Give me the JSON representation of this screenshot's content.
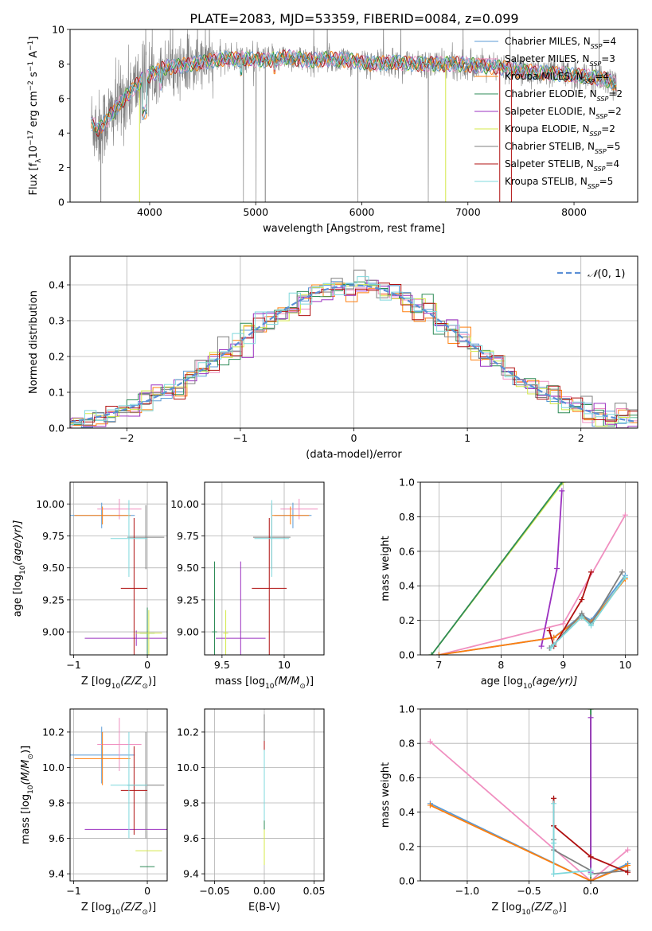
{
  "figure_title": "PLATE=2083, MJD=53359, FIBERID=0084, z=0.099",
  "colors": {
    "chabrier_miles": "#5b9bd5",
    "salpeter_miles": "#f08fc0",
    "kroupa_miles": "#ff7f0e",
    "chabrier_elodie": "#2e8b57",
    "salpeter_elodie": "#9b30c0",
    "kroupa_elodie": "#d4e84a",
    "chabrier_stelib": "#7f7f7f",
    "salpeter_stelib": "#b01010",
    "kroupa_stelib": "#7fd8dc",
    "normal": "#5b8fd6",
    "grid": "#b0b0b0"
  },
  "chart_data": [
    {
      "type": "line",
      "xlabel": "wavelength [Angstrom, rest frame]",
      "ylabel_parts": [
        "Flux [f",
        "λ",
        "10",
        "−17",
        " erg cm",
        "−2",
        " s",
        "−1",
        " A",
        "−1",
        "]"
      ],
      "xlim": [
        3250,
        8600
      ],
      "ylim": [
        0,
        10
      ],
      "xticks": [
        4000,
        5000,
        6000,
        7000,
        8000
      ],
      "yticks": [
        0,
        2,
        4,
        6,
        8,
        10
      ],
      "legend_position": "top-right",
      "series": [
        {
          "name": "Chabrier MILES, N_SSP=4",
          "legend": [
            "Chabrier MILES, N",
            "SSP",
            "=4"
          ],
          "color_key": "chabrier_miles"
        },
        {
          "name": "Salpeter MILES, N_SSP=3",
          "legend": [
            "Salpeter MILES, N",
            "SSP",
            "=3"
          ],
          "color_key": "salpeter_miles"
        },
        {
          "name": "Kroupa MILES, N_SSP=4",
          "legend": [
            "Kroupa MILES, N",
            "SSP",
            "=4"
          ],
          "color_key": "kroupa_miles"
        },
        {
          "name": "Chabrier ELODIE, N_SSP=2",
          "legend": [
            "Chabrier ELODIE, N",
            "SSP",
            "=2"
          ],
          "color_key": "chabrier_elodie"
        },
        {
          "name": "Salpeter ELODIE, N_SSP=2",
          "legend": [
            "Salpeter ELODIE, N",
            "SSP",
            "=2"
          ],
          "color_key": "salpeter_elodie"
        },
        {
          "name": "Kroupa ELODIE, N_SSP=2",
          "legend": [
            "Kroupa ELODIE, N",
            "SSP",
            "=2"
          ],
          "color_key": "kroupa_elodie"
        },
        {
          "name": "Chabrier STELIB, N_SSP=5",
          "legend": [
            "Chabrier STELIB, N",
            "SSP",
            "=5"
          ],
          "color_key": "chabrier_stelib"
        },
        {
          "name": "Salpeter STELIB, N_SSP=4",
          "legend": [
            "Salpeter STELIB, N",
            "SSP",
            "=4"
          ],
          "color_key": "salpeter_stelib"
        },
        {
          "name": "Kroupa STELIB, N_SSP=5",
          "legend": [
            "Kroupa STELIB, N",
            "SSP",
            "=5"
          ],
          "color_key": "kroupa_stelib"
        }
      ],
      "model_continuum": [
        [
          3450,
          4.6
        ],
        [
          3520,
          4.2
        ],
        [
          3600,
          4.8
        ],
        [
          3680,
          5.4
        ],
        [
          3760,
          6.0
        ],
        [
          3850,
          6.6
        ],
        [
          3950,
          7.2
        ],
        [
          4050,
          7.5
        ],
        [
          4150,
          7.8
        ],
        [
          4300,
          7.9
        ],
        [
          4500,
          8.1
        ],
        [
          4700,
          8.3
        ],
        [
          4900,
          8.3
        ],
        [
          5100,
          8.2
        ],
        [
          5300,
          8.4
        ],
        [
          5500,
          8.2
        ],
        [
          5700,
          8.3
        ],
        [
          5900,
          8.2
        ],
        [
          6100,
          8.0
        ],
        [
          6300,
          8.1
        ],
        [
          6500,
          8.0
        ],
        [
          6700,
          8.0
        ],
        [
          6900,
          8.0
        ],
        [
          7100,
          7.9
        ],
        [
          7300,
          7.8
        ],
        [
          7500,
          7.6
        ],
        [
          7700,
          7.5
        ],
        [
          7900,
          7.4
        ],
        [
          8100,
          7.3
        ],
        [
          8300,
          7.1
        ],
        [
          8400,
          6.8
        ]
      ]
    },
    {
      "type": "line",
      "xlabel": "(data-model)/error",
      "ylabel": "Normed distribution",
      "xlim": [
        -2.5,
        2.5
      ],
      "ylim": [
        0,
        0.48
      ],
      "xticks": [
        -2,
        -1,
        0,
        1,
        2
      ],
      "yticks": [
        0.0,
        0.1,
        0.2,
        0.3,
        0.4
      ],
      "grid": true,
      "legend_position": "top-right",
      "normal_label": "N(0, 1)",
      "normal_legend": [
        "𝒩",
        "(0, 1)"
      ]
    },
    {
      "type": "scatter",
      "xlabel_parts": [
        "Z [log",
        "10",
        "(Z/Z",
        "⊙",
        ")]"
      ],
      "ylabel_parts": [
        "age  [log",
        "10",
        "(age/yr)]"
      ],
      "xlim": [
        -1.05,
        0.27
      ],
      "ylim": [
        8.82,
        10.17
      ],
      "xticks": [
        -1,
        0
      ],
      "yticks": [
        9.0,
        9.25,
        9.5,
        9.75,
        10.0
      ],
      "grid": true,
      "points": [
        {
          "color_key": "chabrier_miles",
          "x": -0.62,
          "xerr": 0.45,
          "y": 9.91,
          "yerr": 0.1
        },
        {
          "color_key": "salpeter_miles",
          "x": -0.38,
          "xerr": 0.3,
          "y": 9.96,
          "yerr": 0.08
        },
        {
          "color_key": "kroupa_miles",
          "x": -0.61,
          "xerr": 0.38,
          "y": 9.91,
          "yerr": 0.07
        },
        {
          "color_key": "chabrier_elodie",
          "x": 0.0,
          "xerr": 0.1,
          "y": 8.99,
          "yerr": 0.2
        },
        {
          "color_key": "salpeter_elodie",
          "x": -0.15,
          "xerr": 0.7,
          "y": 8.95,
          "yerr": 0.06
        },
        {
          "color_key": "kroupa_elodie",
          "x": 0.02,
          "xerr": 0.18,
          "y": 8.99,
          "yerr": 0.18
        },
        {
          "color_key": "chabrier_stelib",
          "x": -0.02,
          "xerr": 0.25,
          "y": 9.74,
          "yerr": 0.25
        },
        {
          "color_key": "salpeter_stelib",
          "x": -0.18,
          "xerr": 0.18,
          "y": 9.34,
          "yerr": 0.55
        },
        {
          "color_key": "kroupa_stelib",
          "x": -0.25,
          "xerr": 0.25,
          "y": 9.73,
          "yerr": 0.3
        }
      ]
    },
    {
      "type": "scatter",
      "xlabel_parts": [
        "mass [log",
        "10",
        "(M/M",
        "⊙",
        ")]"
      ],
      "xlim": [
        9.36,
        10.32
      ],
      "ylim": [
        8.82,
        10.17
      ],
      "xticks": [
        9.5,
        10.0
      ],
      "yticks": [
        9.0,
        9.25,
        9.5,
        9.75,
        10.0
      ],
      "grid": true,
      "points": [
        {
          "color_key": "chabrier_miles",
          "x": 10.07,
          "xerr": 0.15,
          "y": 9.91,
          "yerr": 0.1
        },
        {
          "color_key": "salpeter_miles",
          "x": 10.12,
          "xerr": 0.15,
          "y": 9.96,
          "yerr": 0.08
        },
        {
          "color_key": "kroupa_miles",
          "x": 10.05,
          "xerr": 0.15,
          "y": 9.91,
          "yerr": 0.07
        },
        {
          "color_key": "chabrier_elodie",
          "x": 9.44,
          "xerr": 0.02,
          "y": 9.0,
          "yerr": 0.55
        },
        {
          "color_key": "salpeter_elodie",
          "x": 9.65,
          "xerr": 0.2,
          "y": 8.95,
          "yerr": 0.6
        },
        {
          "color_key": "kroupa_elodie",
          "x": 9.53,
          "xerr": 0.02,
          "y": 8.99,
          "yerr": 0.18
        },
        {
          "color_key": "chabrier_stelib",
          "x": 9.9,
          "xerr": 0.15,
          "y": 9.74,
          "yerr": 0.25
        },
        {
          "color_key": "salpeter_stelib",
          "x": 9.88,
          "xerr": 0.14,
          "y": 9.34,
          "yerr": 0.55
        },
        {
          "color_key": "kroupa_stelib",
          "x": 9.9,
          "xerr": 0.14,
          "y": 9.73,
          "yerr": 0.3
        }
      ]
    },
    {
      "type": "line",
      "xlabel_parts": [
        "age  [log",
        "10",
        "(age/yr)]"
      ],
      "ylabel": "mass weight",
      "xlim": [
        6.7,
        10.2
      ],
      "ylim": [
        0,
        1.0
      ],
      "xticks": [
        7,
        8,
        9,
        10
      ],
      "yticks": [
        0.0,
        0.2,
        0.4,
        0.6,
        0.8,
        1.0
      ],
      "grid": true,
      "series": [
        {
          "color_key": "salpeter_miles",
          "x": [
            7.0,
            9.0,
            10.0
          ],
          "y": [
            0.0,
            0.18,
            0.81
          ]
        },
        {
          "color_key": "kroupa_elodie",
          "x": [
            6.88,
            9.0
          ],
          "y": [
            0.0,
            1.0
          ]
        },
        {
          "color_key": "chabrier_elodie",
          "x": [
            6.88,
            8.98
          ],
          "y": [
            0.0,
            1.0
          ]
        },
        {
          "color_key": "salpeter_elodie",
          "x": [
            8.65,
            8.9,
            8.98
          ],
          "y": [
            0.05,
            0.5,
            0.95
          ]
        },
        {
          "color_key": "chabrier_miles",
          "x": [
            7.0,
            8.85,
            9.3,
            9.45,
            10.0
          ],
          "y": [
            0.0,
            0.1,
            0.23,
            0.2,
            0.46
          ]
        },
        {
          "color_key": "kroupa_miles",
          "x": [
            7.0,
            8.85,
            9.3,
            9.45,
            10.0
          ],
          "y": [
            0.0,
            0.1,
            0.22,
            0.19,
            0.44
          ]
        },
        {
          "color_key": "chabrier_stelib",
          "x": [
            8.78,
            8.85,
            9.3,
            9.45,
            9.95
          ],
          "y": [
            0.04,
            0.06,
            0.24,
            0.18,
            0.48
          ]
        },
        {
          "color_key": "salpeter_stelib",
          "x": [
            8.78,
            8.85,
            9.3,
            9.45
          ],
          "y": [
            0.14,
            0.05,
            0.32,
            0.48
          ]
        },
        {
          "color_key": "kroupa_stelib",
          "x": [
            8.8,
            8.85,
            9.3,
            9.45,
            10.0
          ],
          "y": [
            0.04,
            0.06,
            0.22,
            0.17,
            0.45
          ]
        }
      ]
    },
    {
      "type": "scatter",
      "xlabel_parts": [
        "Z [log",
        "10",
        "(Z/Z",
        "⊙",
        ")]"
      ],
      "ylabel_parts": [
        "mass [log",
        "10",
        "(M/M",
        "⊙",
        ")]"
      ],
      "xlim": [
        -1.05,
        0.27
      ],
      "ylim": [
        9.36,
        10.33
      ],
      "xticks": [
        -1,
        0
      ],
      "yticks": [
        9.4,
        9.6,
        9.8,
        10.0,
        10.2
      ],
      "grid": true,
      "points": [
        {
          "color_key": "chabrier_miles",
          "x": -0.62,
          "xerr": 0.45,
          "y": 10.07,
          "yerr": 0.16
        },
        {
          "color_key": "salpeter_miles",
          "x": -0.38,
          "xerr": 0.3,
          "y": 10.13,
          "yerr": 0.15
        },
        {
          "color_key": "kroupa_miles",
          "x": -0.61,
          "xerr": 0.38,
          "y": 10.05,
          "yerr": 0.15
        },
        {
          "color_key": "chabrier_elodie",
          "x": 0.0,
          "xerr": 0.1,
          "y": 9.44,
          "yerr": 0.0
        },
        {
          "color_key": "salpeter_elodie",
          "x": -0.15,
          "xerr": 0.7,
          "y": 9.65,
          "yerr": 0.0
        },
        {
          "color_key": "kroupa_elodie",
          "x": 0.02,
          "xerr": 0.18,
          "y": 9.53,
          "yerr": 0.0
        },
        {
          "color_key": "chabrier_stelib",
          "x": -0.02,
          "xerr": 0.25,
          "y": 9.9,
          "yerr": 0.3
        },
        {
          "color_key": "salpeter_stelib",
          "x": -0.18,
          "xerr": 0.18,
          "y": 9.87,
          "yerr": 0.25
        },
        {
          "color_key": "kroupa_stelib",
          "x": -0.25,
          "xerr": 0.25,
          "y": 9.9,
          "yerr": 0.3
        }
      ]
    },
    {
      "type": "scatter",
      "xlabel": "E(B-V)",
      "xlim": [
        -0.06,
        0.06
      ],
      "ylim": [
        9.36,
        10.33
      ],
      "xticks": [
        -0.05,
        0.0,
        0.05
      ],
      "yticks": [
        9.4,
        9.6,
        9.8,
        10.0,
        10.2
      ],
      "grid": true,
      "points": [
        {
          "color_key": "chabrier_stelib",
          "x": 0.0,
          "xerr": 0.0,
          "y": 9.9,
          "yerr": 0.4
        },
        {
          "color_key": "chabrier_elodie",
          "x": 0.0,
          "xerr": 0.0,
          "y": 9.6,
          "yerr": 0.15
        },
        {
          "color_key": "kroupa_elodie",
          "x": 0.0,
          "xerr": 0.0,
          "y": 9.55,
          "yerr": 0.1
        },
        {
          "color_key": "salpeter_stelib",
          "x": 0.0,
          "xerr": 0.0,
          "y": 10.1,
          "yerr": 0.05
        },
        {
          "color_key": "kroupa_stelib",
          "x": 0.0,
          "xerr": 0.0,
          "y": 9.9,
          "yerr": 0.2
        }
      ]
    },
    {
      "type": "line",
      "xlabel_parts": [
        "Z [log",
        "10",
        "(Z/Z",
        "⊙",
        ")]"
      ],
      "ylabel": "mass weight",
      "xlim": [
        -1.38,
        0.38
      ],
      "ylim": [
        0,
        1.0
      ],
      "xticks": [
        -1.0,
        -0.5,
        0.0
      ],
      "yticks": [
        0.0,
        0.2,
        0.4,
        0.6,
        0.8,
        1.0
      ],
      "grid": true,
      "series": [
        {
          "color_key": "salpeter_miles",
          "x": [
            -1.3,
            0.0,
            0.3
          ],
          "y": [
            0.81,
            0.0,
            0.18
          ]
        },
        {
          "color_key": "kroupa_elodie",
          "x": [
            0.0,
            0.0
          ],
          "y": [
            0.0,
            1.0
          ]
        },
        {
          "color_key": "chabrier_elodie",
          "x": [
            0.0,
            0.0
          ],
          "y": [
            0.0,
            1.0
          ]
        },
        {
          "color_key": "salpeter_elodie",
          "x": [
            0.0,
            0.0
          ],
          "y": [
            0.05,
            0.95
          ]
        },
        {
          "color_key": "chabrier_miles",
          "x": [
            -1.3,
            0.0,
            0.3
          ],
          "y": [
            0.45,
            0.0,
            0.1
          ]
        },
        {
          "color_key": "kroupa_miles",
          "x": [
            -1.3,
            0.0,
            0.3
          ],
          "y": [
            0.44,
            0.0,
            0.09
          ]
        },
        {
          "color_key": "chabrier_stelib",
          "x": [
            -0.3,
            -0.3,
            -0.3,
            -0.3,
            0.0,
            0.0,
            0.3
          ],
          "y": [
            0.48,
            0.32,
            0.24,
            0.18,
            0.06,
            0.04,
            0.06
          ]
        },
        {
          "color_key": "salpeter_stelib",
          "x": [
            -0.3,
            -0.3,
            0.0,
            0.3
          ],
          "y": [
            0.48,
            0.32,
            0.14,
            0.05
          ]
        },
        {
          "color_key": "kroupa_stelib",
          "x": [
            -0.3,
            -0.3,
            -0.3,
            0.0,
            0.0
          ],
          "y": [
            0.45,
            0.22,
            0.04,
            0.06,
            0.04
          ]
        }
      ]
    }
  ]
}
